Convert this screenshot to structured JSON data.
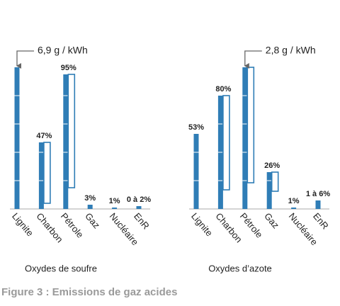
{
  "caption": "Figure 3 : Emissions de gaz acides",
  "chart_data": [
    {
      "type": "bar",
      "title": "Oxydes de soufre",
      "color": "#2f7db6",
      "categories": [
        "Lignite",
        "Charbon",
        "Pétrole",
        "Gaz",
        "Nucléaire",
        "EnR"
      ],
      "values": [
        100,
        47,
        95,
        3,
        1,
        2
      ],
      "value_labels": [
        null,
        "47%",
        "95%",
        "3%",
        "1%",
        "0 à 2%"
      ],
      "range_low": [
        null,
        4,
        15,
        null,
        null,
        null
      ],
      "annotation": {
        "text": "6,9 g / kWh",
        "category": "Lignite"
      },
      "ylim": [
        0,
        100
      ],
      "yticks": [
        0,
        20,
        40,
        60,
        80,
        100
      ]
    },
    {
      "type": "bar",
      "title": "Oxydes d’azote",
      "color": "#2f7db6",
      "categories": [
        "Lignite",
        "Charbon",
        "Pétrole",
        "Gaz",
        "Nucléaire",
        "EnR"
      ],
      "values": [
        53,
        80,
        100,
        26,
        1,
        6
      ],
      "value_labels": [
        "53%",
        "80%",
        null,
        "26%",
        "1%",
        "1 à 6%"
      ],
      "range_low": [
        null,
        13.5,
        18.5,
        12.5,
        null,
        null
      ],
      "annotation": {
        "text": "2,8 g / kWh",
        "category": "Pétrole"
      },
      "ylim": [
        0,
        100
      ],
      "yticks": [
        0,
        20,
        40,
        60,
        80,
        100
      ]
    }
  ]
}
